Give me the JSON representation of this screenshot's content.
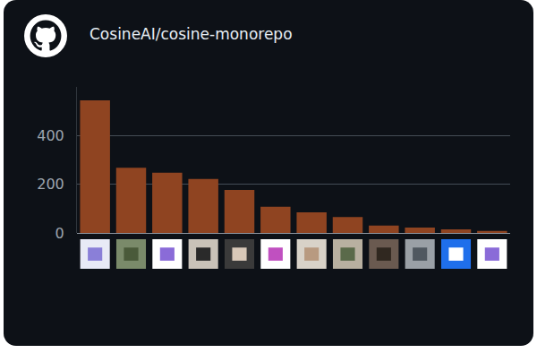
{
  "chart_data": {
    "type": "bar",
    "title": "CosineAI/cosine-monorepo",
    "categories": [
      null,
      null,
      null,
      null,
      null,
      null,
      null,
      null,
      null,
      null,
      null,
      null
    ],
    "values": [
      545,
      268,
      248,
      222,
      177,
      108,
      85,
      65,
      30,
      22,
      15,
      8
    ],
    "color": "#8f4421",
    "ylim": [
      0,
      600
    ],
    "yticks": [
      0,
      200,
      400
    ],
    "grid": true,
    "tick_labels": "y"
  }
}
